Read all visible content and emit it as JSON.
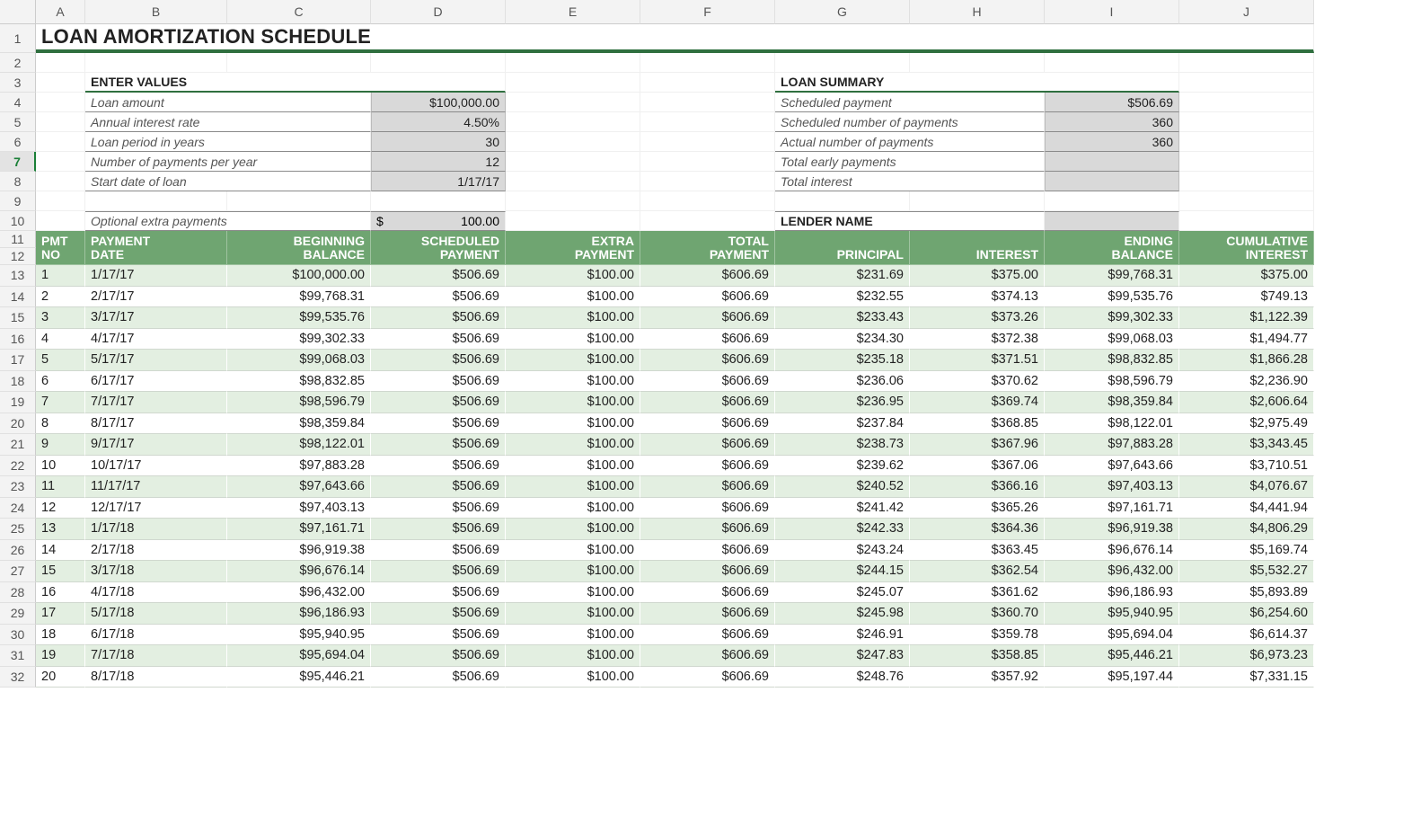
{
  "columns": [
    "A",
    "B",
    "C",
    "D",
    "E",
    "F",
    "G",
    "H",
    "I",
    "J"
  ],
  "row_headers": [
    "1",
    "2",
    "3",
    "4",
    "5",
    "6",
    "7",
    "8",
    "9",
    "10",
    "11",
    "12",
    "13",
    "14",
    "15",
    "16",
    "17",
    "18",
    "19",
    "20",
    "21",
    "22",
    "23",
    "24",
    "25",
    "26",
    "27",
    "28",
    "29",
    "30",
    "31",
    "32"
  ],
  "selected_row_header": "7",
  "title": "LOAN AMORTIZATION SCHEDULE",
  "enter_values": {
    "header": "ENTER VALUES",
    "rows": [
      {
        "label": "Loan amount",
        "value": "$100,000.00"
      },
      {
        "label": "Annual interest rate",
        "value": "4.50%"
      },
      {
        "label": "Loan period in years",
        "value": "30"
      },
      {
        "label": "Number of payments per year",
        "value": "12"
      },
      {
        "label": "Start date of loan",
        "value": "1/17/17"
      }
    ],
    "extra": {
      "label": "Optional extra payments",
      "currency_symbol": "$",
      "value": "100.00"
    }
  },
  "loan_summary": {
    "header": "LOAN SUMMARY",
    "rows": [
      {
        "label": "Scheduled payment",
        "value": "$506.69"
      },
      {
        "label": "Scheduled number of payments",
        "value": "360"
      },
      {
        "label": "Actual number of payments",
        "value": "360"
      },
      {
        "label": "Total early payments",
        "value": ""
      },
      {
        "label": "Total interest",
        "value": ""
      }
    ],
    "lender_label": "LENDER NAME",
    "lender_value": ""
  },
  "table": {
    "header_row_bg": "#6fa571",
    "header_fg": "#ffffff",
    "odd_row_bg": "#e3efe1",
    "even_row_bg": "#ffffff",
    "columns": [
      {
        "top": "PMT",
        "bottom": "NO",
        "align": "left"
      },
      {
        "top": "PAYMENT",
        "bottom": "DATE",
        "align": "left"
      },
      {
        "top": "BEGINNING",
        "bottom": "BALANCE",
        "align": "right"
      },
      {
        "top": "SCHEDULED",
        "bottom": "PAYMENT",
        "align": "right"
      },
      {
        "top": "EXTRA",
        "bottom": "PAYMENT",
        "align": "right"
      },
      {
        "top": "TOTAL",
        "bottom": "PAYMENT",
        "align": "right"
      },
      {
        "top": "",
        "bottom": "PRINCIPAL",
        "align": "right"
      },
      {
        "top": "",
        "bottom": "INTEREST",
        "align": "right"
      },
      {
        "top": "ENDING",
        "bottom": "BALANCE",
        "align": "right"
      },
      {
        "top": "CUMULATIVE",
        "bottom": "INTEREST",
        "align": "right"
      }
    ],
    "rows": [
      [
        "1",
        "1/17/17",
        "$100,000.00",
        "$506.69",
        "$100.00",
        "$606.69",
        "$231.69",
        "$375.00",
        "$99,768.31",
        "$375.00"
      ],
      [
        "2",
        "2/17/17",
        "$99,768.31",
        "$506.69",
        "$100.00",
        "$606.69",
        "$232.55",
        "$374.13",
        "$99,535.76",
        "$749.13"
      ],
      [
        "3",
        "3/17/17",
        "$99,535.76",
        "$506.69",
        "$100.00",
        "$606.69",
        "$233.43",
        "$373.26",
        "$99,302.33",
        "$1,122.39"
      ],
      [
        "4",
        "4/17/17",
        "$99,302.33",
        "$506.69",
        "$100.00",
        "$606.69",
        "$234.30",
        "$372.38",
        "$99,068.03",
        "$1,494.77"
      ],
      [
        "5",
        "5/17/17",
        "$99,068.03",
        "$506.69",
        "$100.00",
        "$606.69",
        "$235.18",
        "$371.51",
        "$98,832.85",
        "$1,866.28"
      ],
      [
        "6",
        "6/17/17",
        "$98,832.85",
        "$506.69",
        "$100.00",
        "$606.69",
        "$236.06",
        "$370.62",
        "$98,596.79",
        "$2,236.90"
      ],
      [
        "7",
        "7/17/17",
        "$98,596.79",
        "$506.69",
        "$100.00",
        "$606.69",
        "$236.95",
        "$369.74",
        "$98,359.84",
        "$2,606.64"
      ],
      [
        "8",
        "8/17/17",
        "$98,359.84",
        "$506.69",
        "$100.00",
        "$606.69",
        "$237.84",
        "$368.85",
        "$98,122.01",
        "$2,975.49"
      ],
      [
        "9",
        "9/17/17",
        "$98,122.01",
        "$506.69",
        "$100.00",
        "$606.69",
        "$238.73",
        "$367.96",
        "$97,883.28",
        "$3,343.45"
      ],
      [
        "10",
        "10/17/17",
        "$97,883.28",
        "$506.69",
        "$100.00",
        "$606.69",
        "$239.62",
        "$367.06",
        "$97,643.66",
        "$3,710.51"
      ],
      [
        "11",
        "11/17/17",
        "$97,643.66",
        "$506.69",
        "$100.00",
        "$606.69",
        "$240.52",
        "$366.16",
        "$97,403.13",
        "$4,076.67"
      ],
      [
        "12",
        "12/17/17",
        "$97,403.13",
        "$506.69",
        "$100.00",
        "$606.69",
        "$241.42",
        "$365.26",
        "$97,161.71",
        "$4,441.94"
      ],
      [
        "13",
        "1/17/18",
        "$97,161.71",
        "$506.69",
        "$100.00",
        "$606.69",
        "$242.33",
        "$364.36",
        "$96,919.38",
        "$4,806.29"
      ],
      [
        "14",
        "2/17/18",
        "$96,919.38",
        "$506.69",
        "$100.00",
        "$606.69",
        "$243.24",
        "$363.45",
        "$96,676.14",
        "$5,169.74"
      ],
      [
        "15",
        "3/17/18",
        "$96,676.14",
        "$506.69",
        "$100.00",
        "$606.69",
        "$244.15",
        "$362.54",
        "$96,432.00",
        "$5,532.27"
      ],
      [
        "16",
        "4/17/18",
        "$96,432.00",
        "$506.69",
        "$100.00",
        "$606.69",
        "$245.07",
        "$361.62",
        "$96,186.93",
        "$5,893.89"
      ],
      [
        "17",
        "5/17/18",
        "$96,186.93",
        "$506.69",
        "$100.00",
        "$606.69",
        "$245.98",
        "$360.70",
        "$95,940.95",
        "$6,254.60"
      ],
      [
        "18",
        "6/17/18",
        "$95,940.95",
        "$506.69",
        "$100.00",
        "$606.69",
        "$246.91",
        "$359.78",
        "$95,694.04",
        "$6,614.37"
      ],
      [
        "19",
        "7/17/18",
        "$95,694.04",
        "$506.69",
        "$100.00",
        "$606.69",
        "$247.83",
        "$358.85",
        "$95,446.21",
        "$6,973.23"
      ],
      [
        "20",
        "8/17/18",
        "$95,446.21",
        "$506.69",
        "$100.00",
        "$606.69",
        "$248.76",
        "$357.92",
        "$95,197.44",
        "$7,331.15"
      ]
    ]
  }
}
